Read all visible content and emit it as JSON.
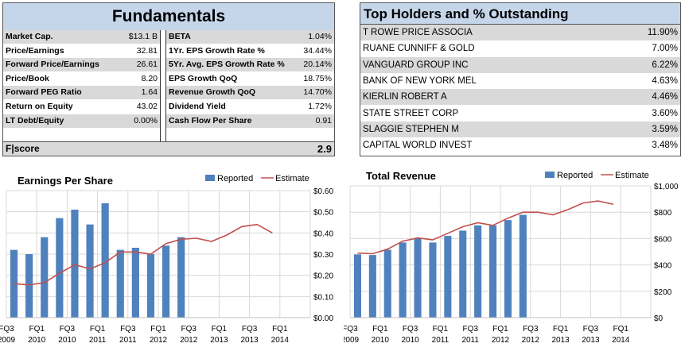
{
  "fundamentals": {
    "title": "Fundamentals",
    "left": [
      {
        "label": "Market Cap.",
        "value": "$13.1 B"
      },
      {
        "label": "Price/Earnings",
        "value": "32.81"
      },
      {
        "label": "Forward Price/Earnings",
        "value": "26.61"
      },
      {
        "label": "Price/Book",
        "value": "8.20"
      },
      {
        "label": "Forward PEG Ratio",
        "value": "1.64"
      },
      {
        "label": "Return on Equity",
        "value": "43.02"
      },
      {
        "label": "LT Debt/Equity",
        "value": "0.00%"
      }
    ],
    "right": [
      {
        "label": "BETA",
        "value": "1.04%"
      },
      {
        "label": "1Yr. EPS Growth Rate %",
        "value": "34.44%"
      },
      {
        "label": "5Yr. Avg. EPS Growth Rate %",
        "value": "20.14%"
      },
      {
        "label": "EPS Growth QoQ",
        "value": "18.75%"
      },
      {
        "label": "Revenue Growth QoQ",
        "value": "14.70%"
      },
      {
        "label": "Dividend Yield",
        "value": "1.72%"
      },
      {
        "label": "Cash Flow Per Share",
        "value": "0.91"
      }
    ],
    "fscore": {
      "label": "F|score",
      "value": "2.9"
    }
  },
  "holders": {
    "title": "Top Holders and % Outstanding",
    "rows": [
      {
        "name": "T ROWE PRICE ASSOCIA",
        "pct": "11.90%"
      },
      {
        "name": "RUANE CUNNIFF & GOLD",
        "pct": "7.00%"
      },
      {
        "name": "VANGUARD GROUP INC",
        "pct": "6.22%"
      },
      {
        "name": "BANK OF NEW YORK MEL",
        "pct": "4.63%"
      },
      {
        "name": "KIERLIN ROBERT A",
        "pct": "4.46%"
      },
      {
        "name": "STATE STREET CORP",
        "pct": "3.60%"
      },
      {
        "name": "SLAGGIE STEPHEN M",
        "pct": "3.59%"
      },
      {
        "name": "CAPITAL WORLD INVEST",
        "pct": "3.48%"
      }
    ]
  },
  "colors": {
    "reported": "#4f81bd",
    "estimate": "#c0504d",
    "header": "#c6d6ea",
    "shade": "#d9d9d9"
  },
  "chart_data": [
    {
      "type": "bar",
      "title": "Earnings Per Share",
      "legend": [
        "Reported",
        "Estimate"
      ],
      "legend_position": "top-right",
      "x_tick_labels": [
        [
          "FQ3",
          "2009"
        ],
        [
          "FQ1",
          "2010"
        ],
        [
          "FQ3",
          "2010"
        ],
        [
          "FQ1",
          "2011"
        ],
        [
          "FQ3",
          "2011"
        ],
        [
          "FQ1",
          "2012"
        ],
        [
          "FQ3",
          "2012"
        ],
        [
          "FQ1",
          "2013"
        ],
        [
          "FQ3",
          "2013"
        ],
        [
          "FQ1",
          "2014"
        ]
      ],
      "y_tick_labels": [
        "$0.00",
        "$0.10",
        "$0.20",
        "$0.30",
        "$0.40",
        "$0.50",
        "$0.60"
      ],
      "ylim": [
        0,
        0.6
      ],
      "grid": true,
      "num_quarters": 20,
      "series": [
        {
          "name": "Reported",
          "type": "bar",
          "values": [
            0.32,
            0.3,
            0.38,
            0.47,
            0.51,
            0.44,
            0.54,
            0.32,
            0.33,
            0.3,
            0.34,
            0.38
          ]
        },
        {
          "name": "Estimate",
          "type": "line",
          "values": [
            0.16,
            0.155,
            0.165,
            0.21,
            0.25,
            0.23,
            0.26,
            0.31,
            0.31,
            0.3,
            0.35,
            0.37,
            0.375,
            0.36,
            0.39,
            0.43,
            0.44,
            0.4
          ]
        }
      ]
    },
    {
      "type": "bar",
      "title": "Total Revenue",
      "legend": [
        "Reported",
        "Estimate"
      ],
      "legend_position": "top-right",
      "x_tick_labels": [
        [
          "FQ3",
          "2009"
        ],
        [
          "FQ1",
          "2010"
        ],
        [
          "FQ3",
          "2010"
        ],
        [
          "FQ1",
          "2011"
        ],
        [
          "FQ3",
          "2011"
        ],
        [
          "FQ1",
          "2012"
        ],
        [
          "FQ3",
          "2012"
        ],
        [
          "FQ1",
          "2013"
        ],
        [
          "FQ3",
          "2013"
        ],
        [
          "FQ1",
          "2014"
        ]
      ],
      "y_tick_labels": [
        "$0",
        "$200",
        "$400",
        "$600",
        "$800",
        "$1,000"
      ],
      "ylim": [
        0,
        1000
      ],
      "grid": true,
      "num_quarters": 20,
      "series": [
        {
          "name": "Reported",
          "type": "bar",
          "values": [
            480,
            475,
            515,
            570,
            600,
            570,
            620,
            660,
            700,
            700,
            740,
            780
          ]
        },
        {
          "name": "Estimate",
          "type": "line",
          "values": [
            490,
            485,
            520,
            580,
            605,
            590,
            640,
            690,
            720,
            700,
            755,
            800,
            800,
            780,
            820,
            870,
            885,
            860
          ]
        }
      ]
    }
  ]
}
